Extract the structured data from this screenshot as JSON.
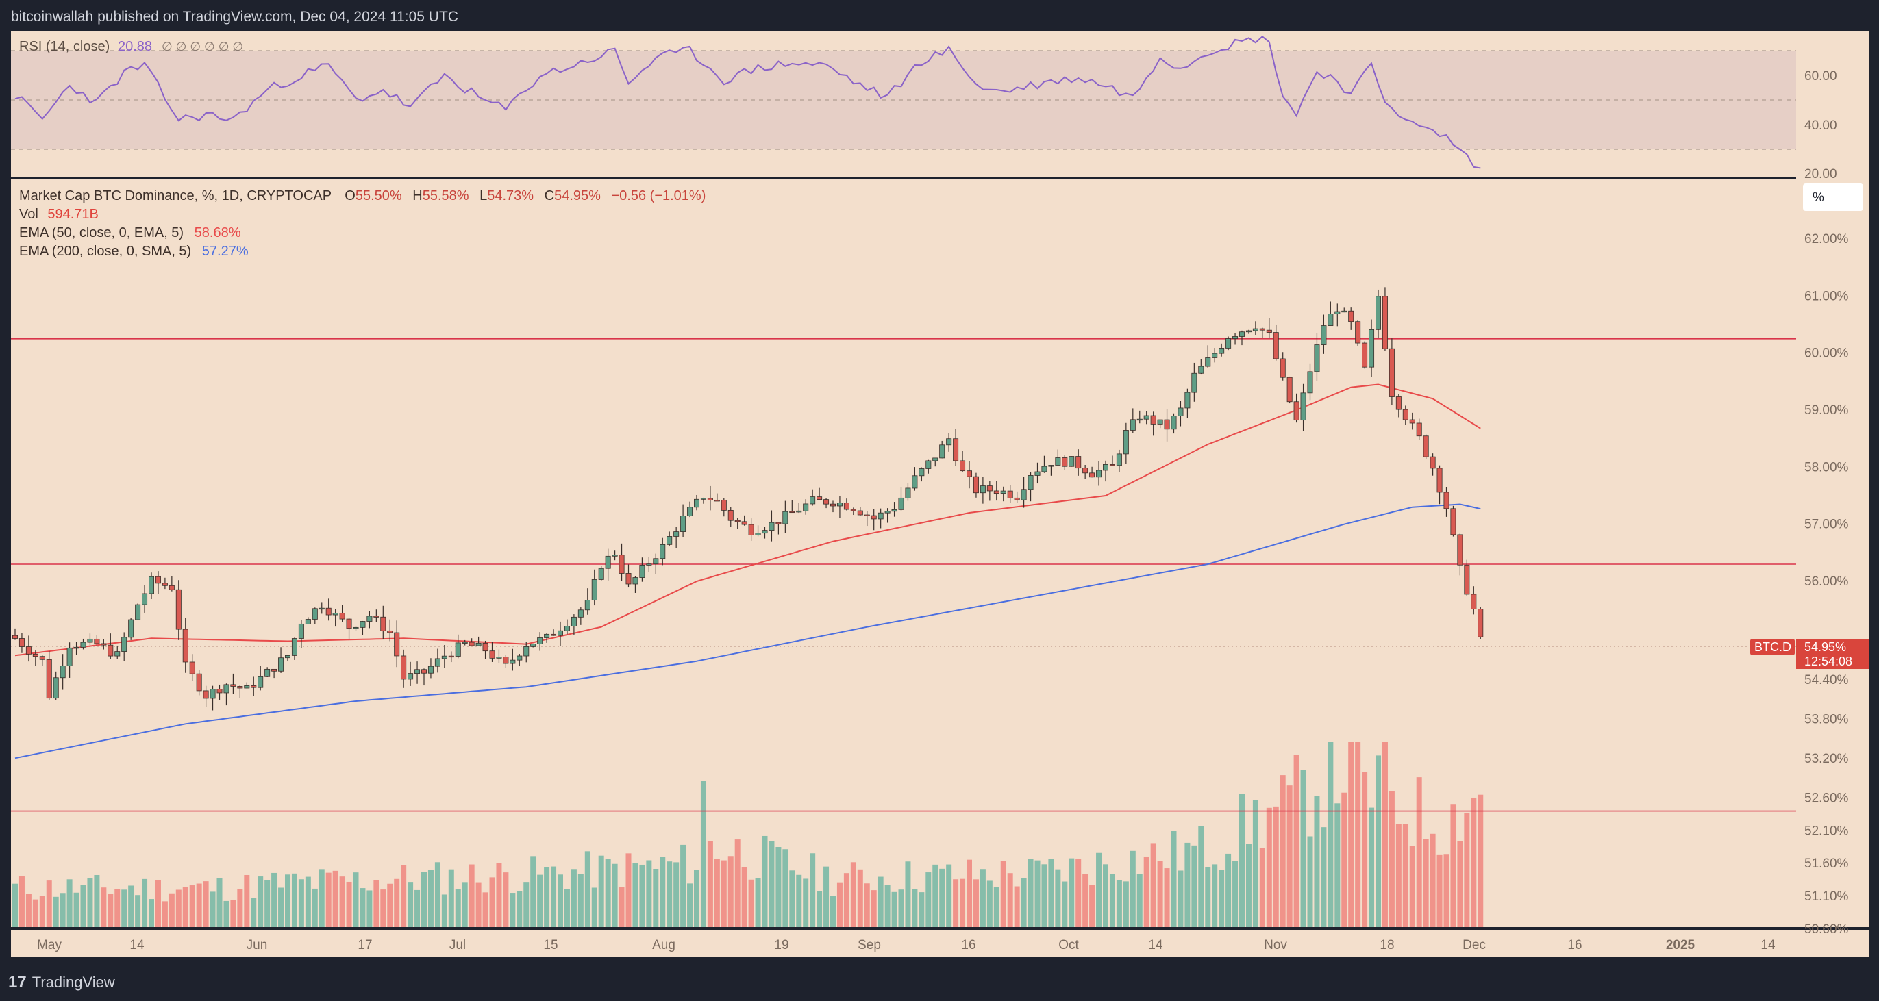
{
  "header": {
    "published": "bitcoinwallah published on TradingView.com, Dec 04, 2024 11:05 UTC"
  },
  "footer": {
    "brand": "TradingView",
    "logo_glyph": "17"
  },
  "colors": {
    "background": "#1e222d",
    "pane_bg": "#f3dfcc",
    "rsi_band": "#e6cfc6",
    "up": "#5f9e86",
    "down": "#d95a52",
    "vol_up": "#86bdaa",
    "vol_down": "#f0938a",
    "ema50": "#e84a4a",
    "ema200": "#4a6ee0",
    "rsi_line": "#8a62c8",
    "hline": "#d9344a",
    "axis_text": "#7a6a5e"
  },
  "rsi_pane": {
    "label": "RSI (14, close)",
    "value": "20.88",
    "placeholders": "∅ ∅ ∅ ∅ ∅ ∅",
    "ticks": [
      "60.00",
      "40.00",
      "20.00"
    ]
  },
  "main_pane": {
    "legend": {
      "symbol": "Market Cap BTC Dominance, %, 1D, CRYPTOCAP",
      "o_label": "O",
      "o": "55.50%",
      "h_label": "H",
      "h": "55.58%",
      "l_label": "L",
      "l": "54.73%",
      "c_label": "C",
      "c": "54.95%",
      "change": "−0.56 (−1.01%)",
      "vol_label": "Vol",
      "vol": "594.71B",
      "ema50_label": "EMA (50, close, 0, EMA, 5)",
      "ema50": "58.68%",
      "ema200_label": "EMA (200, close, 0, SMA, 5)",
      "ema200": "57.27%"
    },
    "scale_mode": "%",
    "price_ticks": [
      "62.00%",
      "61.00%",
      "60.00%",
      "59.00%",
      "58.00%",
      "57.00%",
      "56.00%",
      "54.40%",
      "53.80%",
      "53.20%",
      "52.60%",
      "52.10%",
      "51.60%",
      "51.10%",
      "50.60%"
    ],
    "last_price": {
      "ticker": "BTC.D",
      "value": "54.95%",
      "countdown": "12:54:08"
    },
    "resistance_levels": [
      60.25,
      56.3,
      52.4
    ]
  },
  "time_axis": [
    "May",
    "14",
    "Jun",
    "17",
    "Jul",
    "15",
    "Aug",
    "19",
    "Sep",
    "16",
    "Oct",
    "14",
    "Nov",
    "18",
    "Dec",
    "16",
    "2025",
    "14"
  ],
  "chart_data": {
    "type": "candlestick",
    "title": "Market Cap BTC Dominance, %, 1D, CRYPTOCAP",
    "x_start": "2024-04-26",
    "x_end": "2024-12-04",
    "ylim": [
      50.4,
      62.6
    ],
    "close_anchors": [
      [
        0,
        55.0
      ],
      [
        4,
        54.6
      ],
      [
        5,
        54.0
      ],
      [
        8,
        54.9
      ],
      [
        12,
        54.9
      ],
      [
        15,
        54.7
      ],
      [
        18,
        55.6
      ],
      [
        20,
        56.0
      ],
      [
        23,
        55.9
      ],
      [
        25,
        54.5
      ],
      [
        28,
        54.0
      ],
      [
        31,
        54.2
      ],
      [
        34,
        54.1
      ],
      [
        37,
        54.4
      ],
      [
        40,
        54.7
      ],
      [
        42,
        55.3
      ],
      [
        45,
        55.6
      ],
      [
        47,
        55.4
      ],
      [
        49,
        55.2
      ],
      [
        52,
        55.4
      ],
      [
        55,
        55.1
      ],
      [
        57,
        54.3
      ],
      [
        60,
        54.4
      ],
      [
        63,
        54.7
      ],
      [
        66,
        54.9
      ],
      [
        69,
        54.8
      ],
      [
        72,
        54.5
      ],
      [
        75,
        54.9
      ],
      [
        78,
        55.0
      ],
      [
        81,
        55.3
      ],
      [
        84,
        55.6
      ],
      [
        86,
        56.3
      ],
      [
        88,
        56.5
      ],
      [
        90,
        55.9
      ],
      [
        92,
        56.2
      ],
      [
        95,
        56.6
      ],
      [
        98,
        57.1
      ],
      [
        101,
        57.5
      ],
      [
        103,
        57.4
      ],
      [
        105,
        57.1
      ],
      [
        108,
        56.9
      ],
      [
        111,
        57.0
      ],
      [
        114,
        57.2
      ],
      [
        117,
        57.4
      ],
      [
        120,
        57.4
      ],
      [
        123,
        57.3
      ],
      [
        126,
        57.1
      ],
      [
        129,
        57.3
      ],
      [
        132,
        57.8
      ],
      [
        135,
        58.2
      ],
      [
        137,
        58.5
      ],
      [
        139,
        57.9
      ],
      [
        141,
        57.6
      ],
      [
        144,
        57.6
      ],
      [
        147,
        57.5
      ],
      [
        149,
        57.9
      ],
      [
        152,
        58.1
      ],
      [
        155,
        58.1
      ],
      [
        158,
        57.9
      ],
      [
        161,
        58.0
      ],
      [
        163,
        58.6
      ],
      [
        165,
        58.9
      ],
      [
        167,
        58.8
      ],
      [
        169,
        58.7
      ],
      [
        171,
        59.0
      ],
      [
        173,
        59.6
      ],
      [
        176,
        60.0
      ],
      [
        178,
        60.3
      ],
      [
        180,
        60.4
      ],
      [
        182,
        60.5
      ],
      [
        184,
        60.3
      ],
      [
        186,
        59.5
      ],
      [
        188,
        58.8
      ],
      [
        190,
        59.7
      ],
      [
        192,
        60.5
      ],
      [
        194,
        60.8
      ],
      [
        196,
        60.5
      ],
      [
        198,
        59.7
      ],
      [
        200,
        61.0
      ],
      [
        202,
        59.3
      ],
      [
        204,
        58.9
      ],
      [
        206,
        58.5
      ],
      [
        208,
        58.0
      ],
      [
        210,
        57.3
      ],
      [
        212,
        56.2
      ],
      [
        214,
        55.5
      ],
      [
        215,
        54.95
      ]
    ],
    "ema50_anchors": [
      [
        0,
        54.7
      ],
      [
        20,
        55.0
      ],
      [
        40,
        54.95
      ],
      [
        57,
        55.0
      ],
      [
        75,
        54.9
      ],
      [
        86,
        55.2
      ],
      [
        100,
        56.0
      ],
      [
        120,
        56.7
      ],
      [
        140,
        57.2
      ],
      [
        160,
        57.5
      ],
      [
        175,
        58.4
      ],
      [
        188,
        59.0
      ],
      [
        196,
        59.4
      ],
      [
        200,
        59.45
      ],
      [
        208,
        59.2
      ],
      [
        215,
        58.68
      ]
    ],
    "ema200_anchors": [
      [
        0,
        52.9
      ],
      [
        25,
        53.5
      ],
      [
        50,
        53.9
      ],
      [
        75,
        54.15
      ],
      [
        100,
        54.6
      ],
      [
        125,
        55.2
      ],
      [
        150,
        55.75
      ],
      [
        175,
        56.3
      ],
      [
        195,
        57.0
      ],
      [
        205,
        57.3
      ],
      [
        212,
        57.35
      ],
      [
        215,
        57.27
      ]
    ],
    "rsi_anchors": [
      [
        0,
        52
      ],
      [
        4,
        42
      ],
      [
        8,
        56
      ],
      [
        12,
        49
      ],
      [
        16,
        61
      ],
      [
        19,
        64
      ],
      [
        24,
        42
      ],
      [
        28,
        44
      ],
      [
        32,
        42
      ],
      [
        37,
        54
      ],
      [
        42,
        60
      ],
      [
        46,
        64
      ],
      [
        50,
        50
      ],
      [
        54,
        54
      ],
      [
        58,
        47
      ],
      [
        63,
        60
      ],
      [
        68,
        51
      ],
      [
        72,
        46
      ],
      [
        77,
        60
      ],
      [
        82,
        64
      ],
      [
        88,
        70
      ],
      [
        90,
        57
      ],
      [
        94,
        67
      ],
      [
        99,
        70
      ],
      [
        104,
        58
      ],
      [
        109,
        63
      ],
      [
        114,
        65
      ],
      [
        119,
        64
      ],
      [
        124,
        56
      ],
      [
        128,
        51
      ],
      [
        133,
        66
      ],
      [
        137,
        70
      ],
      [
        142,
        54
      ],
      [
        146,
        54
      ],
      [
        151,
        57
      ],
      [
        156,
        59
      ],
      [
        160,
        56
      ],
      [
        164,
        51
      ],
      [
        168,
        68
      ],
      [
        171,
        63
      ],
      [
        175,
        70
      ],
      [
        179,
        73
      ],
      [
        182,
        75
      ],
      [
        184,
        74
      ],
      [
        186,
        52
      ],
      [
        188,
        44
      ],
      [
        191,
        62
      ],
      [
        194,
        58
      ],
      [
        196,
        52
      ],
      [
        199,
        64
      ],
      [
        201,
        50
      ],
      [
        205,
        40
      ],
      [
        210,
        35
      ],
      [
        213,
        27
      ],
      [
        215,
        21
      ]
    ],
    "volume_anchors": [
      [
        0,
        0.8
      ],
      [
        30,
        0.8
      ],
      [
        40,
        0.9
      ],
      [
        60,
        1.0
      ],
      [
        80,
        1.1
      ],
      [
        100,
        1.3
      ],
      [
        101,
        2.7
      ],
      [
        102,
        1.7
      ],
      [
        120,
        1.0
      ],
      [
        150,
        1.1
      ],
      [
        175,
        1.6
      ],
      [
        182,
        2.2
      ],
      [
        186,
        2.4
      ],
      [
        196,
        3.5
      ],
      [
        198,
        2.7
      ],
      [
        200,
        3.0
      ],
      [
        203,
        2.5
      ],
      [
        210,
        2.1
      ],
      [
        213,
        2.6
      ],
      [
        215,
        2.7
      ]
    ],
    "volume_unit": "relative",
    "series": [
      {
        "name": "BTC.D",
        "kind": "candles"
      },
      {
        "name": "EMA 50",
        "value": 58.68
      },
      {
        "name": "EMA 200",
        "value": 57.27
      },
      {
        "name": "Volume",
        "value": "594.71B"
      },
      {
        "name": "RSI (14)",
        "value": 20.88
      }
    ]
  }
}
